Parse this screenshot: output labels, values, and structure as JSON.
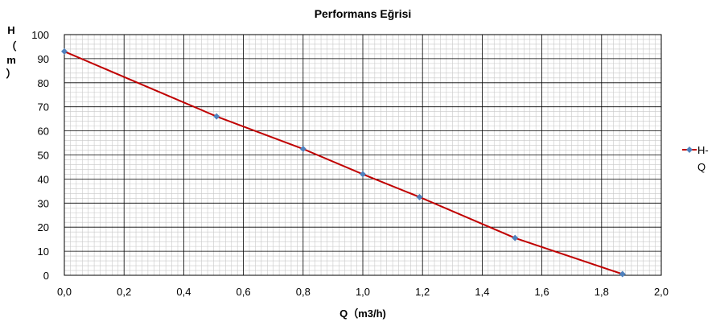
{
  "chart_data": {
    "type": "line",
    "title": "Performans Eğrisi",
    "xlabel": "Q（m3/h)",
    "ylabel": [
      "H",
      "（",
      "m",
      "）"
    ],
    "xlim": [
      0,
      2
    ],
    "ylim": [
      0,
      100
    ],
    "x_ticks": [
      "0,0",
      "0,2",
      "0,4",
      "0,6",
      "0,8",
      "1,0",
      "1,2",
      "1,4",
      "1,6",
      "1,8",
      "2,0"
    ],
    "y_ticks": [
      "0",
      "10",
      "20",
      "30",
      "40",
      "50",
      "60",
      "70",
      "80",
      "90",
      "100"
    ],
    "grid": true,
    "legend": "right",
    "series": [
      {
        "name_lines": [
          "H-",
          "Q"
        ],
        "line_color": "#c00000",
        "marker_color": "#4f81bd",
        "marker": "diamond",
        "x": [
          0.0,
          0.51,
          0.8,
          1.0,
          1.19,
          1.51,
          1.87
        ],
        "y": [
          93,
          66,
          52.5,
          42,
          32.5,
          15.5,
          0.5
        ]
      }
    ]
  }
}
